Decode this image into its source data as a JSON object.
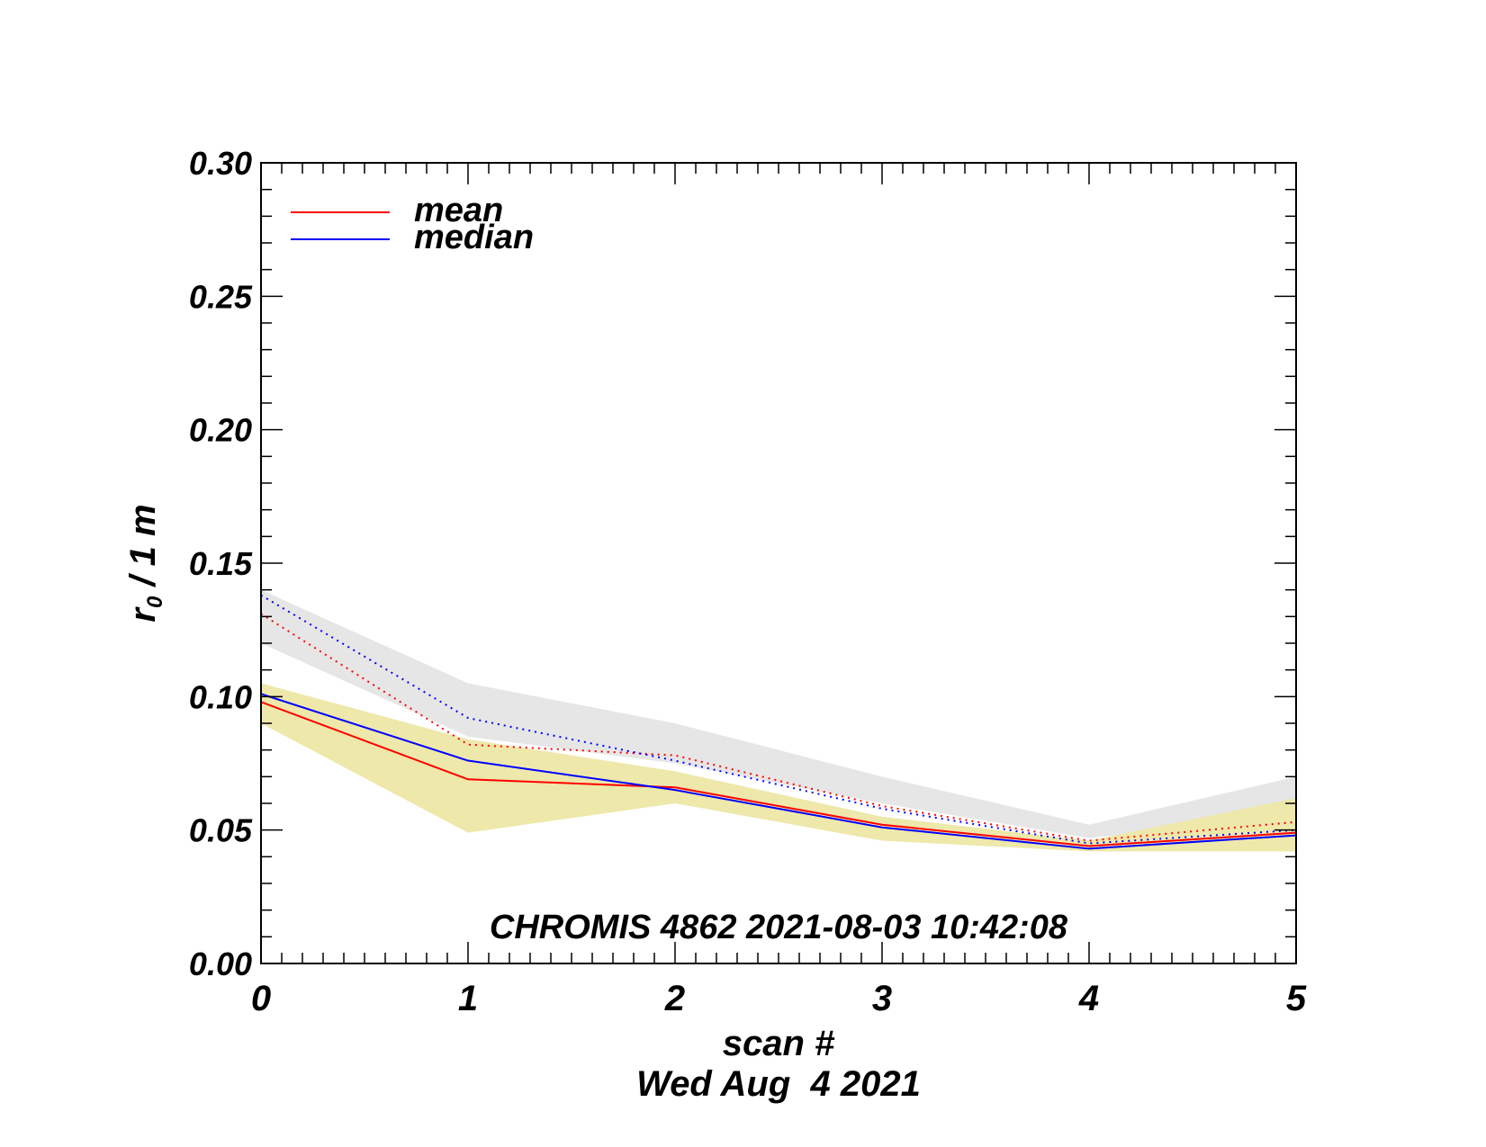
{
  "chart_data": {
    "type": "line",
    "title": "",
    "annotation": "CHROMIS 4862 2021-08-03 10:42:08",
    "xlabel": "scan #",
    "xlabel_date": "Wed Aug  4 2021",
    "ylabel_main": "r",
    "ylabel_sub": "0",
    "ylabel_rest": " / 1 m",
    "xlim": [
      0,
      5
    ],
    "ylim": [
      0,
      0.3
    ],
    "x_ticks": [
      "0",
      "1",
      "2",
      "3",
      "4",
      "5"
    ],
    "y_ticks": [
      "0.00",
      "0.05",
      "0.10",
      "0.15",
      "0.20",
      "0.25",
      "0.30"
    ],
    "x": [
      0,
      1,
      2,
      3,
      4,
      5
    ],
    "legend_position": "top-left",
    "legend": [
      {
        "name": "mean",
        "color": "#ff0000"
      },
      {
        "name": "median",
        "color": "#0000ff"
      }
    ],
    "series": [
      {
        "name": "mean",
        "color": "#ff0000",
        "style": "solid",
        "values": [
          0.098,
          0.069,
          0.066,
          0.052,
          0.044,
          0.049
        ]
      },
      {
        "name": "median",
        "color": "#0000ff",
        "style": "solid",
        "values": [
          0.101,
          0.076,
          0.065,
          0.051,
          0.043,
          0.048
        ]
      },
      {
        "color": "#ff0000",
        "style": "dotted",
        "values": [
          0.131,
          0.082,
          0.078,
          0.059,
          0.046,
          0.053
        ]
      },
      {
        "color": "#0000ff",
        "style": "dotted",
        "values": [
          0.138,
          0.092,
          0.076,
          0.058,
          0.045,
          0.05
        ]
      }
    ],
    "bands": [
      {
        "color": "#e6e6e6",
        "upper": [
          0.14,
          0.105,
          0.09,
          0.07,
          0.052,
          0.07
        ],
        "lower": [
          0.12,
          0.085,
          0.075,
          0.06,
          0.047,
          0.055
        ]
      },
      {
        "color": "#eee8aa",
        "upper": [
          0.105,
          0.084,
          0.072,
          0.055,
          0.046,
          0.062
        ],
        "lower": [
          0.09,
          0.049,
          0.06,
          0.046,
          0.042,
          0.042
        ]
      }
    ]
  }
}
